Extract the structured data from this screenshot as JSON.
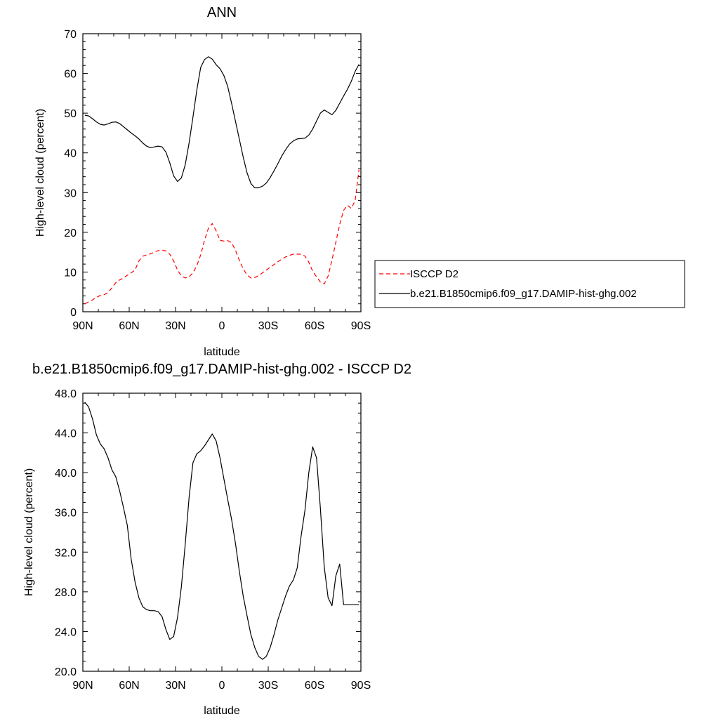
{
  "chart_data": [
    {
      "type": "line",
      "title": "ANN",
      "xlabel": "latitude",
      "ylabel": "High-level cloud (percent)",
      "xlim": [
        90,
        -90
      ],
      "ylim": [
        0,
        70
      ],
      "x_ticks": [
        {
          "value": 90,
          "label": "90N"
        },
        {
          "value": 60,
          "label": "60N"
        },
        {
          "value": 30,
          "label": "30N"
        },
        {
          "value": 0,
          "label": "0"
        },
        {
          "value": -30,
          "label": "30S"
        },
        {
          "value": -60,
          "label": "60S"
        },
        {
          "value": -90,
          "label": "90S"
        }
      ],
      "y_ticks": [
        {
          "value": 0,
          "label": "0"
        },
        {
          "value": 10,
          "label": "10"
        },
        {
          "value": 20,
          "label": "20"
        },
        {
          "value": 30,
          "label": "30"
        },
        {
          "value": 40,
          "label": "40"
        },
        {
          "value": 50,
          "label": "50"
        },
        {
          "value": 60,
          "label": "60"
        },
        {
          "value": 70,
          "label": "70"
        }
      ],
      "legend": {
        "position": "right"
      },
      "series": [
        {
          "name": "ISCCP D2",
          "color": "#ff0000",
          "dash": "dashed",
          "x": [
            88.75,
            86.25,
            83.75,
            81.25,
            78.75,
            76.25,
            73.75,
            71.25,
            68.75,
            66.25,
            63.75,
            61.25,
            58.75,
            56.25,
            53.75,
            51.25,
            48.75,
            46.25,
            43.75,
            41.25,
            38.75,
            36.25,
            33.75,
            31.25,
            28.75,
            26.25,
            23.75,
            21.25,
            18.75,
            16.25,
            13.75,
            11.25,
            8.75,
            6.25,
            3.75,
            1.25,
            -1.25,
            -3.75,
            -6.25,
            -8.75,
            -11.25,
            -13.75,
            -16.25,
            -18.75,
            -21.25,
            -23.75,
            -26.25,
            -28.75,
            -31.25,
            -33.75,
            -36.25,
            -38.75,
            -41.25,
            -43.75,
            -46.25,
            -48.75,
            -51.25,
            -53.75,
            -56.25,
            -58.75,
            -61.25,
            -63.75,
            -66.25,
            -68.75,
            -71.25,
            -73.75,
            -76.25,
            -78.75,
            -81.25,
            -83.75,
            -86.25,
            -88.75
          ],
          "y": [
            2.0,
            2.5,
            3.0,
            3.6,
            4.1,
            4.3,
            4.8,
            6.0,
            7.3,
            8.0,
            8.5,
            9.2,
            9.8,
            10.5,
            12.8,
            14.0,
            14.3,
            14.6,
            15.0,
            15.4,
            15.5,
            15.3,
            14.5,
            12.8,
            10.5,
            9.0,
            8.5,
            8.8,
            9.8,
            11.6,
            14.3,
            18.0,
            21.0,
            22.2,
            20.4,
            18.0,
            17.8,
            17.9,
            17.4,
            15.5,
            13.0,
            10.8,
            9.3,
            8.5,
            8.6,
            9.1,
            9.8,
            10.5,
            11.2,
            11.9,
            12.6,
            13.2,
            13.8,
            14.2,
            14.5,
            14.5,
            14.5,
            14.0,
            12.5,
            10.2,
            8.8,
            7.5,
            7.0,
            9.0,
            13.0,
            17.5,
            22.0,
            25.5,
            26.8,
            26.0,
            28.0,
            35.8
          ]
        },
        {
          "name": "b.e21.B1850cmip6.f09_g17.DAMIP-hist-ghg.002",
          "color": "#000000",
          "dash": "solid",
          "x": [
            88.75,
            86.25,
            83.75,
            81.25,
            78.75,
            76.25,
            73.75,
            71.25,
            68.75,
            66.25,
            63.75,
            61.25,
            58.75,
            56.25,
            53.75,
            51.25,
            48.75,
            46.25,
            43.75,
            41.25,
            38.75,
            36.25,
            33.75,
            31.25,
            28.75,
            26.25,
            23.75,
            21.25,
            18.75,
            16.25,
            13.75,
            11.25,
            8.75,
            6.25,
            3.75,
            1.25,
            -1.25,
            -3.75,
            -6.25,
            -8.75,
            -11.25,
            -13.75,
            -16.25,
            -18.75,
            -21.25,
            -23.75,
            -26.25,
            -28.75,
            -31.25,
            -33.75,
            -36.25,
            -38.75,
            -41.25,
            -43.75,
            -46.25,
            -48.75,
            -51.25,
            -53.75,
            -56.25,
            -58.75,
            -61.25,
            -63.75,
            -66.25,
            -68.75,
            -71.25,
            -73.75,
            -76.25,
            -78.75,
            -81.25,
            -83.75,
            -86.25,
            -88.75
          ],
          "y": [
            49.5,
            49.3,
            48.6,
            47.8,
            47.2,
            47.0,
            47.3,
            47.7,
            47.8,
            47.4,
            46.6,
            45.8,
            45.0,
            44.3,
            43.5,
            42.5,
            41.7,
            41.3,
            41.5,
            41.7,
            41.5,
            40.2,
            37.5,
            34.2,
            32.8,
            33.7,
            37.0,
            42.5,
            49.0,
            55.8,
            61.5,
            63.5,
            64.2,
            63.6,
            62.2,
            61.2,
            59.5,
            56.7,
            52.5,
            48.0,
            43.5,
            39.0,
            35.0,
            32.3,
            31.2,
            31.2,
            31.6,
            32.4,
            33.8,
            35.5,
            37.3,
            39.2,
            40.8,
            42.2,
            43.0,
            43.5,
            43.6,
            43.7,
            44.5,
            46.0,
            48.0,
            50.0,
            50.8,
            50.2,
            49.6,
            50.7,
            52.5,
            54.3,
            56.0,
            58.0,
            60.5,
            62.3
          ]
        }
      ]
    },
    {
      "type": "line",
      "title": "b.e21.B1850cmip6.f09_g17.DAMIP-hist-ghg.002 - ISCCP D2",
      "xlabel": "latitude",
      "ylabel": "High-level cloud (percent)",
      "xlim": [
        90,
        -90
      ],
      "ylim": [
        20.0,
        48.0
      ],
      "x_ticks": [
        {
          "value": 90,
          "label": "90N"
        },
        {
          "value": 60,
          "label": "60N"
        },
        {
          "value": 30,
          "label": "30N"
        },
        {
          "value": 0,
          "label": "0"
        },
        {
          "value": -30,
          "label": "30S"
        },
        {
          "value": -60,
          "label": "60S"
        },
        {
          "value": -90,
          "label": "90S"
        }
      ],
      "y_ticks": [
        {
          "value": 20.0,
          "label": "20.0"
        },
        {
          "value": 24.0,
          "label": "24.0"
        },
        {
          "value": 28.0,
          "label": "28.0"
        },
        {
          "value": 32.0,
          "label": "32.0"
        },
        {
          "value": 36.0,
          "label": "36.0"
        },
        {
          "value": 40.0,
          "label": "40.0"
        },
        {
          "value": 44.0,
          "label": "44.0"
        },
        {
          "value": 48.0,
          "label": "48.0"
        }
      ],
      "series": [
        {
          "color": "#000000",
          "dash": "solid",
          "x": [
            88.75,
            86.25,
            83.75,
            81.25,
            78.75,
            76.25,
            73.75,
            71.25,
            68.75,
            66.25,
            63.75,
            61.25,
            58.75,
            56.25,
            53.75,
            51.25,
            48.75,
            46.25,
            43.75,
            41.25,
            38.75,
            36.25,
            33.75,
            31.25,
            28.75,
            26.25,
            23.75,
            21.25,
            18.75,
            16.25,
            13.75,
            11.25,
            8.75,
            6.25,
            3.75,
            1.25,
            -1.25,
            -3.75,
            -6.25,
            -8.75,
            -11.25,
            -13.75,
            -16.25,
            -18.75,
            -21.25,
            -23.75,
            -26.25,
            -28.75,
            -31.25,
            -33.75,
            -36.25,
            -38.75,
            -41.25,
            -43.75,
            -46.25,
            -48.75,
            -51.25,
            -53.75,
            -56.25,
            -58.75,
            -61.25,
            -63.75,
            -66.25,
            -68.75,
            -71.25,
            -73.75,
            -76.25,
            -78.75,
            -81.25,
            -83.75,
            -86.25,
            -88.75
          ],
          "y": [
            47.1,
            46.6,
            45.4,
            43.8,
            42.9,
            42.4,
            41.5,
            40.3,
            39.6,
            38.2,
            36.5,
            34.7,
            31.3,
            29.0,
            27.4,
            26.5,
            26.2,
            26.1,
            26.1,
            26.0,
            25.5,
            24.2,
            23.2,
            23.5,
            25.4,
            28.5,
            32.8,
            37.5,
            41.0,
            41.9,
            42.2,
            42.7,
            43.3,
            43.9,
            43.2,
            41.5,
            39.4,
            37.3,
            35.3,
            32.9,
            30.1,
            27.6,
            25.6,
            23.7,
            22.4,
            21.5,
            21.2,
            21.5,
            22.4,
            23.7,
            25.2,
            26.4,
            27.6,
            28.6,
            29.2,
            30.4,
            33.6,
            36.2,
            40.0,
            42.6,
            41.5,
            36.4,
            30.5,
            27.4,
            26.6,
            29.6,
            30.8,
            26.7,
            26.7,
            26.7,
            26.7,
            26.7
          ]
        }
      ]
    }
  ]
}
